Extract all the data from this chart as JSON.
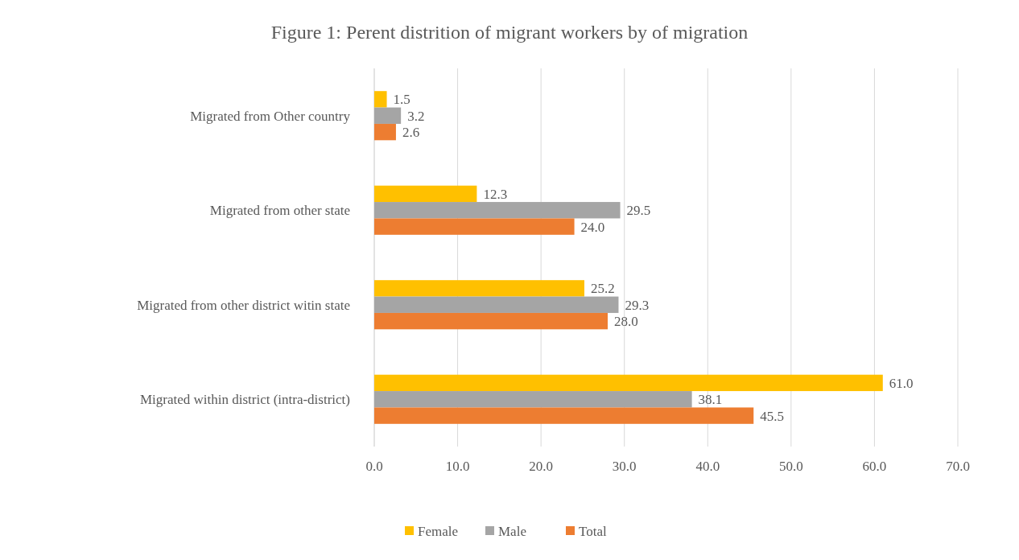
{
  "chart_data": {
    "type": "bar",
    "orientation": "horizontal",
    "title": "Figure 1: Perent distrition of migrant workers by of migration",
    "categories": [
      "Migrated from Other country",
      "Migrated from other state",
      "Migrated from other district witin state",
      "Migrated within district (intra-district)"
    ],
    "series": [
      {
        "name": "Female",
        "color": "#ffc000",
        "values": [
          1.5,
          12.3,
          25.2,
          61.0
        ],
        "value_labels": [
          "1.5",
          "12.3",
          "25.2",
          "61.0"
        ]
      },
      {
        "name": "Male",
        "color": "#a5a5a5",
        "values": [
          3.2,
          29.5,
          29.3,
          38.1
        ],
        "value_labels": [
          "3.2",
          "29.5",
          "29.3",
          "38.1"
        ]
      },
      {
        "name": "Total",
        "color": "#ed7d31",
        "values": [
          2.6,
          24.0,
          28.0,
          45.5
        ],
        "value_labels": [
          "2.6",
          "24.0",
          "28.0",
          "45.5"
        ]
      }
    ],
    "xlim": [
      0,
      70
    ],
    "xticks": [
      {
        "value": 0,
        "label": "0.0"
      },
      {
        "value": 10,
        "label": "10.0"
      },
      {
        "value": 20,
        "label": "20.0"
      },
      {
        "value": 30,
        "label": "30.0"
      },
      {
        "value": 40,
        "label": "40.0"
      },
      {
        "value": 50,
        "label": "50.0"
      },
      {
        "value": 60,
        "label": "60.0"
      },
      {
        "value": 70,
        "label": "70.0"
      }
    ],
    "grid": "x",
    "legend": "bottom"
  }
}
